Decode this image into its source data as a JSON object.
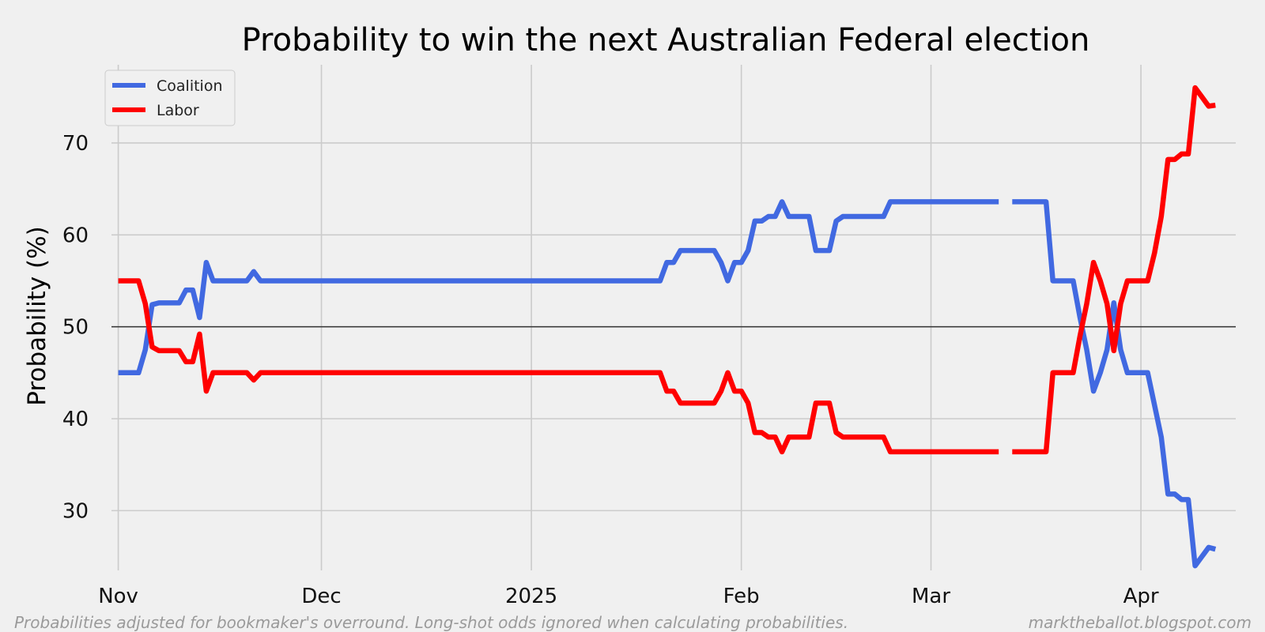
{
  "chart_data": {
    "type": "line",
    "title": "Probability to win the next Australian Federal election",
    "xlabel": "",
    "ylabel": "Probability (%)",
    "ylim": [
      23.5,
      78.5
    ],
    "xlim": [
      "2024-10-31",
      "2025-04-15"
    ],
    "yticks": [
      30,
      40,
      50,
      60,
      70
    ],
    "xticks": [
      {
        "date": "2024-11-01",
        "label": "Nov"
      },
      {
        "date": "2024-12-01",
        "label": "Dec"
      },
      {
        "date": "2025-01-01",
        "label": "2025"
      },
      {
        "date": "2025-02-01",
        "label": "Feb"
      },
      {
        "date": "2025-03-01",
        "label": "Mar"
      },
      {
        "date": "2025-04-01",
        "label": "Apr"
      }
    ],
    "reference_line": 50,
    "grid": true,
    "legend_position": "top-left",
    "series": [
      {
        "name": "Coalition",
        "color": "#4169e1",
        "points": [
          [
            "2024-11-01",
            45
          ],
          [
            "2024-11-02",
            45
          ],
          [
            "2024-11-03",
            45
          ],
          [
            "2024-11-04",
            45
          ],
          [
            "2024-11-05",
            47.5
          ],
          [
            "2024-11-06",
            52.4
          ],
          [
            "2024-11-07",
            52.6
          ],
          [
            "2024-11-08",
            52.6
          ],
          [
            "2024-11-09",
            52.6
          ],
          [
            "2024-11-10",
            52.6
          ],
          [
            "2024-11-11",
            54
          ],
          [
            "2024-11-12",
            54
          ],
          [
            "2024-11-13",
            51
          ],
          [
            "2024-11-14",
            57
          ],
          [
            "2024-11-15",
            55
          ],
          [
            "2024-11-16",
            55
          ],
          [
            "2024-11-19",
            55
          ],
          [
            "2024-11-20",
            55
          ],
          [
            "2024-11-21",
            56
          ],
          [
            "2024-11-22",
            55
          ],
          [
            "2025-01-20",
            55
          ],
          [
            "2025-01-21",
            57
          ],
          [
            "2025-01-22",
            57
          ],
          [
            "2025-01-23",
            58.3
          ],
          [
            "2025-01-28",
            58.3
          ],
          [
            "2025-01-29",
            57
          ],
          [
            "2025-01-30",
            55
          ],
          [
            "2025-01-31",
            57
          ],
          [
            "2025-02-01",
            57
          ],
          [
            "2025-02-02",
            58.3
          ],
          [
            "2025-02-03",
            61.5
          ],
          [
            "2025-02-04",
            61.5
          ],
          [
            "2025-02-05",
            62
          ],
          [
            "2025-02-06",
            62
          ],
          [
            "2025-02-07",
            63.6
          ],
          [
            "2025-02-08",
            62
          ],
          [
            "2025-02-11",
            62
          ],
          [
            "2025-02-12",
            58.3
          ],
          [
            "2025-02-14",
            58.3
          ],
          [
            "2025-02-15",
            61.5
          ],
          [
            "2025-02-16",
            62
          ],
          [
            "2025-02-22",
            62
          ],
          [
            "2025-02-23",
            63.6
          ],
          [
            "2025-03-11",
            63.6
          ]
        ],
        "points_after_gap": [
          [
            "2025-03-13",
            63.6
          ],
          [
            "2025-03-18",
            63.6
          ],
          [
            "2025-03-19",
            55
          ],
          [
            "2025-03-22",
            55
          ],
          [
            "2025-03-23",
            51
          ],
          [
            "2025-03-24",
            47.5
          ],
          [
            "2025-03-25",
            43
          ],
          [
            "2025-03-26",
            45
          ],
          [
            "2025-03-27",
            47.5
          ],
          [
            "2025-03-28",
            52.6
          ],
          [
            "2025-03-29",
            47.5
          ],
          [
            "2025-03-30",
            45
          ],
          [
            "2025-04-02",
            45
          ],
          [
            "2025-04-04",
            38
          ],
          [
            "2025-04-05",
            31.8
          ],
          [
            "2025-04-06",
            31.8
          ],
          [
            "2025-04-07",
            31.2
          ],
          [
            "2025-04-08",
            31.2
          ],
          [
            "2025-04-09",
            24
          ],
          [
            "2025-04-10",
            25
          ],
          [
            "2025-04-11",
            26
          ],
          [
            "2025-04-12",
            25.8
          ]
        ]
      },
      {
        "name": "Labor",
        "color": "#ff0000",
        "points": [
          [
            "2024-11-01",
            55
          ],
          [
            "2024-11-02",
            55
          ],
          [
            "2024-11-03",
            55
          ],
          [
            "2024-11-04",
            55
          ],
          [
            "2024-11-05",
            52.5
          ],
          [
            "2024-11-06",
            47.8
          ],
          [
            "2024-11-07",
            47.4
          ],
          [
            "2024-11-08",
            47.4
          ],
          [
            "2024-11-09",
            47.4
          ],
          [
            "2024-11-10",
            47.4
          ],
          [
            "2024-11-11",
            46.2
          ],
          [
            "2024-11-12",
            46.2
          ],
          [
            "2024-11-13",
            49.2
          ],
          [
            "2024-11-14",
            43
          ],
          [
            "2024-11-15",
            45
          ],
          [
            "2024-11-16",
            45
          ],
          [
            "2024-11-19",
            45
          ],
          [
            "2024-11-20",
            45
          ],
          [
            "2024-11-21",
            44.2
          ],
          [
            "2024-11-22",
            45
          ],
          [
            "2025-01-20",
            45
          ],
          [
            "2025-01-21",
            43
          ],
          [
            "2025-01-22",
            43
          ],
          [
            "2025-01-23",
            41.7
          ],
          [
            "2025-01-28",
            41.7
          ],
          [
            "2025-01-29",
            43
          ],
          [
            "2025-01-30",
            45
          ],
          [
            "2025-01-31",
            43
          ],
          [
            "2025-02-01",
            43
          ],
          [
            "2025-02-02",
            41.7
          ],
          [
            "2025-02-03",
            38.5
          ],
          [
            "2025-02-04",
            38.5
          ],
          [
            "2025-02-05",
            38
          ],
          [
            "2025-02-06",
            38
          ],
          [
            "2025-02-07",
            36.4
          ],
          [
            "2025-02-08",
            38
          ],
          [
            "2025-02-11",
            38
          ],
          [
            "2025-02-12",
            41.7
          ],
          [
            "2025-02-14",
            41.7
          ],
          [
            "2025-02-15",
            38.5
          ],
          [
            "2025-02-16",
            38
          ],
          [
            "2025-02-22",
            38
          ],
          [
            "2025-02-23",
            36.4
          ],
          [
            "2025-03-11",
            36.4
          ]
        ],
        "points_after_gap": [
          [
            "2025-03-13",
            36.4
          ],
          [
            "2025-03-18",
            36.4
          ],
          [
            "2025-03-19",
            45
          ],
          [
            "2025-03-22",
            45
          ],
          [
            "2025-03-23",
            49
          ],
          [
            "2025-03-24",
            52.5
          ],
          [
            "2025-03-25",
            57
          ],
          [
            "2025-03-26",
            55
          ],
          [
            "2025-03-27",
            52.5
          ],
          [
            "2025-03-28",
            47.4
          ],
          [
            "2025-03-29",
            52.5
          ],
          [
            "2025-03-30",
            55
          ],
          [
            "2025-04-02",
            55
          ],
          [
            "2025-04-03",
            58
          ],
          [
            "2025-04-04",
            62
          ],
          [
            "2025-04-05",
            68.2
          ],
          [
            "2025-04-06",
            68.2
          ],
          [
            "2025-04-07",
            68.8
          ],
          [
            "2025-04-08",
            68.8
          ],
          [
            "2025-04-09",
            76
          ],
          [
            "2025-04-10",
            75
          ],
          [
            "2025-04-11",
            74
          ],
          [
            "2025-04-12",
            74.1
          ]
        ]
      }
    ]
  },
  "footnote_left": "Probabilities adjusted for bookmaker's overround. Long-shot odds ignored when calculating probabilities.",
  "footnote_right": "marktheballot.blogspot.com"
}
